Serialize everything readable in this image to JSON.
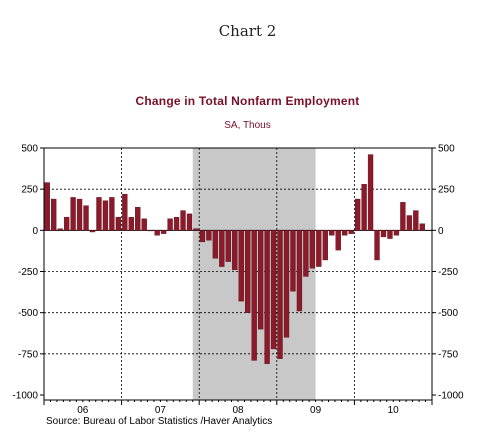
{
  "chart_data": {
    "type": "bar",
    "heading": "Chart 2",
    "title": "Change in Total Nonfarm Employment",
    "subtitle": "SA, Thous",
    "source": "Source:  Bureau of Labor Statistics /Haver Analytics",
    "ylim": [
      -1000,
      500
    ],
    "yticks": [
      500,
      250,
      0,
      -250,
      -500,
      -750,
      -1000
    ],
    "ytick_labels_left": [
      "500",
      "250",
      "0",
      "-250",
      "-500",
      "-750",
      "-1000"
    ],
    "ytick_labels_right": [
      "500",
      "250",
      "0",
      "-250",
      "-500",
      "-750",
      "-1000"
    ],
    "x_start": "2006-01",
    "year_labels": [
      "06",
      "07",
      "08",
      "09",
      "10"
    ],
    "recession": {
      "start": "2007-12",
      "end": "2009-06"
    },
    "bar_color": "#8b1a2a",
    "recession_color": "#c8c8c8",
    "grid": true,
    "values": [
      290,
      190,
      10,
      80,
      200,
      190,
      150,
      -10,
      200,
      180,
      200,
      80,
      220,
      80,
      140,
      70,
      0,
      -30,
      -20,
      70,
      80,
      120,
      100,
      10,
      -70,
      -60,
      -170,
      -220,
      -190,
      -240,
      -430,
      -500,
      -790,
      -600,
      -810,
      -720,
      -780,
      -650,
      -370,
      -490,
      -280,
      -230,
      -220,
      -180,
      -30,
      -120,
      -30,
      -20,
      190,
      280,
      460,
      -180,
      -40,
      -50,
      -30,
      170,
      90,
      120,
      40
    ]
  }
}
